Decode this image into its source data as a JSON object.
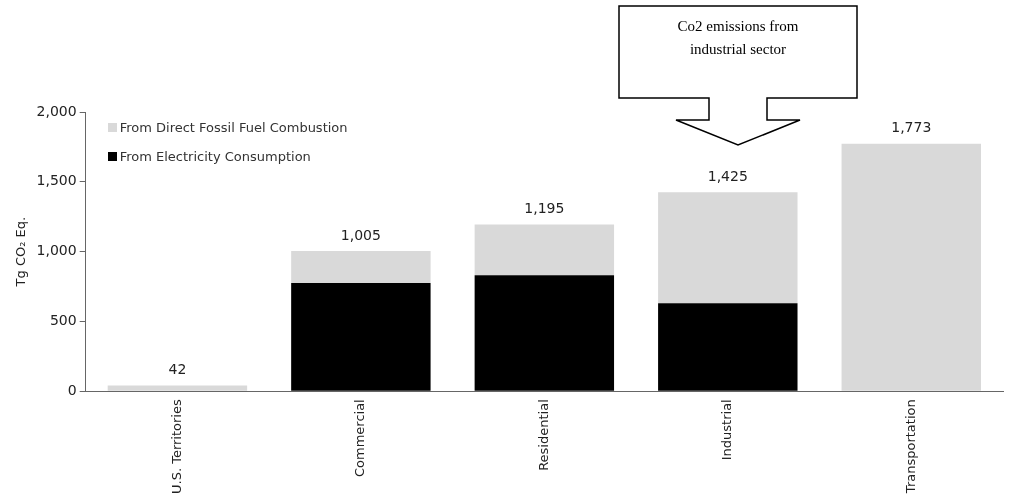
{
  "chart_data": {
    "type": "bar",
    "stacked": true,
    "categories": [
      "U.S. Territories",
      "Commercial",
      "Residential",
      "Industrial",
      "Transportation"
    ],
    "series": [
      {
        "name": "From Electricity Consumption",
        "color": "#000000",
        "values": [
          0,
          775,
          830,
          630,
          0
        ]
      },
      {
        "name": "From Direct Fossil Fuel Combustion",
        "color": "#d9d9d9",
        "values": [
          42,
          230,
          365,
          795,
          1773
        ]
      }
    ],
    "totals": [
      "42",
      "1,005",
      "1,195",
      "1,425",
      "1,773"
    ],
    "ylabel": "Tg CO₂ Eq.",
    "ylim": [
      0,
      2000
    ],
    "yticks": [
      0,
      500,
      {
        "value": 1000,
        "label": "1,000"
      },
      {
        "value": 1500,
        "label": "1,500"
      },
      {
        "value": 2000,
        "label": "2,000"
      }
    ],
    "legend": "top left",
    "annotations": [
      "Co2 emissions from industrial sector"
    ]
  }
}
